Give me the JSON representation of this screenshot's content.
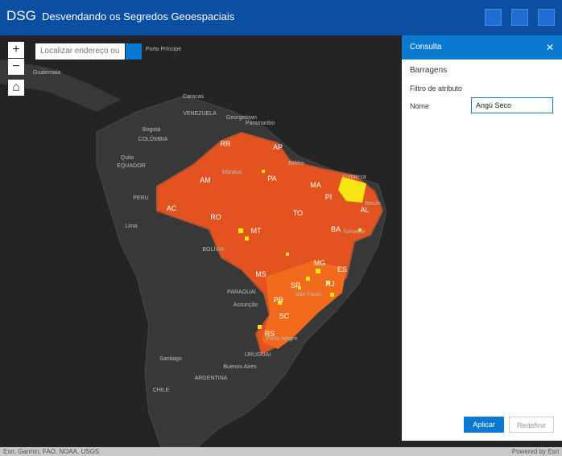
{
  "header": {
    "logo": "DSG",
    "title": "Desvendando os Segredos Geoespaciais"
  },
  "search": {
    "placeholder": "Localizar endereço ou ..."
  },
  "map": {
    "labels": [
      "Guatemala",
      "Porto Príncipe",
      "Caracas",
      "VENEZUELA",
      "Georgetown",
      "Paramaribo",
      "Bogotá",
      "COLÔMBIA",
      "Quito",
      "EQUADOR",
      "PERU",
      "Lima",
      "BOLÍVIA",
      "PARAGUAI",
      "Assunção",
      "Santiago",
      "ARGENTINA",
      "Buenos Aires",
      "URUGUAI",
      "CHILE",
      "RR",
      "AP",
      "AM",
      "Manaus",
      "Belém",
      "PA",
      "MA",
      "Fortaleza",
      "PI",
      "AC",
      "RO",
      "TO",
      "Recife",
      "AL",
      "MT",
      "BA",
      "Salvador",
      "MG",
      "ES",
      "MS",
      "SP",
      "RJ",
      "São Paulo",
      "PR",
      "SC",
      "RS",
      "Porto Alegre"
    ]
  },
  "attribution": {
    "left": "Esri, Garmin, FAO, NOAA, USGS",
    "right": "Powered by Esri"
  },
  "panel": {
    "title": "Consulta",
    "layer": "Barragens",
    "section": "Filtro de atributo",
    "field_label": "Nome",
    "field_value": "Angú Seco",
    "buttons": [
      "Aplicar",
      "Redefinir"
    ]
  }
}
